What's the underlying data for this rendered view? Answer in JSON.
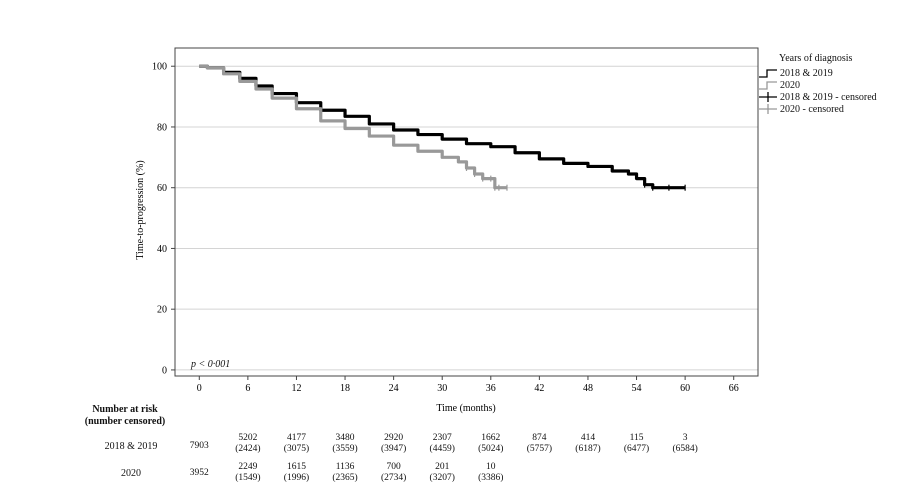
{
  "chart_data": {
    "type": "line",
    "title": "",
    "xlabel": "Time (months)",
    "ylabel": "Time-to-progression (%)",
    "xlim": [
      -3,
      69
    ],
    "ylim": [
      -2,
      106
    ],
    "x_ticks": [
      "0",
      "6",
      "12",
      "18",
      "24",
      "30",
      "36",
      "42",
      "48",
      "54",
      "60",
      "66"
    ],
    "y_ticks": [
      "0",
      "20",
      "40",
      "60",
      "80",
      "100"
    ],
    "grid": "horizontal",
    "legend_position": "top-right",
    "annotation": "p < 0·001",
    "legend": {
      "title": "Years of diagnosis",
      "items": [
        "2018 & 2019",
        "2020",
        "2018 & 2019 - censored",
        "2020 - censored"
      ]
    },
    "series": [
      {
        "name": "2018 & 2019",
        "color": "#000000",
        "x": [
          0,
          1,
          3,
          5,
          7,
          9,
          12,
          15,
          18,
          21,
          24,
          27,
          30,
          33,
          36,
          39,
          42,
          45,
          48,
          51,
          53,
          54,
          55,
          56,
          58,
          60
        ],
        "y": [
          100,
          99.5,
          98,
          96,
          93.5,
          91,
          88,
          85.5,
          83.5,
          81,
          79,
          77.5,
          76,
          74.5,
          73.5,
          71.5,
          69.5,
          68,
          67,
          65.5,
          64.5,
          63,
          61,
          60,
          60,
          60
        ]
      },
      {
        "name": "2020",
        "color": "#999999",
        "x": [
          0,
          1,
          3,
          5,
          7,
          9,
          12,
          15,
          18,
          21,
          24,
          27,
          30,
          32,
          33,
          34,
          35,
          36,
          36.5,
          37,
          38
        ],
        "y": [
          100,
          99.5,
          97.5,
          95,
          92.5,
          89.5,
          86,
          82,
          79.5,
          77,
          74,
          72,
          70,
          68.5,
          66.5,
          64.5,
          63,
          63,
          60,
          60,
          60
        ]
      }
    ],
    "risk_table": {
      "header": [
        "Number at risk",
        "(number censored)"
      ],
      "rows": [
        {
          "group": "2018 & 2019",
          "cells": [
            [
              "7903",
              ""
            ],
            [
              "5202",
              "(2424)"
            ],
            [
              "4177",
              "(3075)"
            ],
            [
              "3480",
              "(3559)"
            ],
            [
              "2920",
              "(3947)"
            ],
            [
              "2307",
              "(4459)"
            ],
            [
              "1662",
              "(5024)"
            ],
            [
              "874",
              "(5757)"
            ],
            [
              "414",
              "(6187)"
            ],
            [
              "115",
              "(6477)"
            ],
            [
              "3",
              "(6584)"
            ]
          ]
        },
        {
          "group": "2020",
          "cells": [
            [
              "3952",
              ""
            ],
            [
              "2249",
              "(1549)"
            ],
            [
              "1615",
              "(1996)"
            ],
            [
              "1136",
              "(2365)"
            ],
            [
              "700",
              "(2734)"
            ],
            [
              "201",
              "(3207)"
            ],
            [
              "10",
              "(3386)"
            ]
          ]
        }
      ]
    }
  }
}
